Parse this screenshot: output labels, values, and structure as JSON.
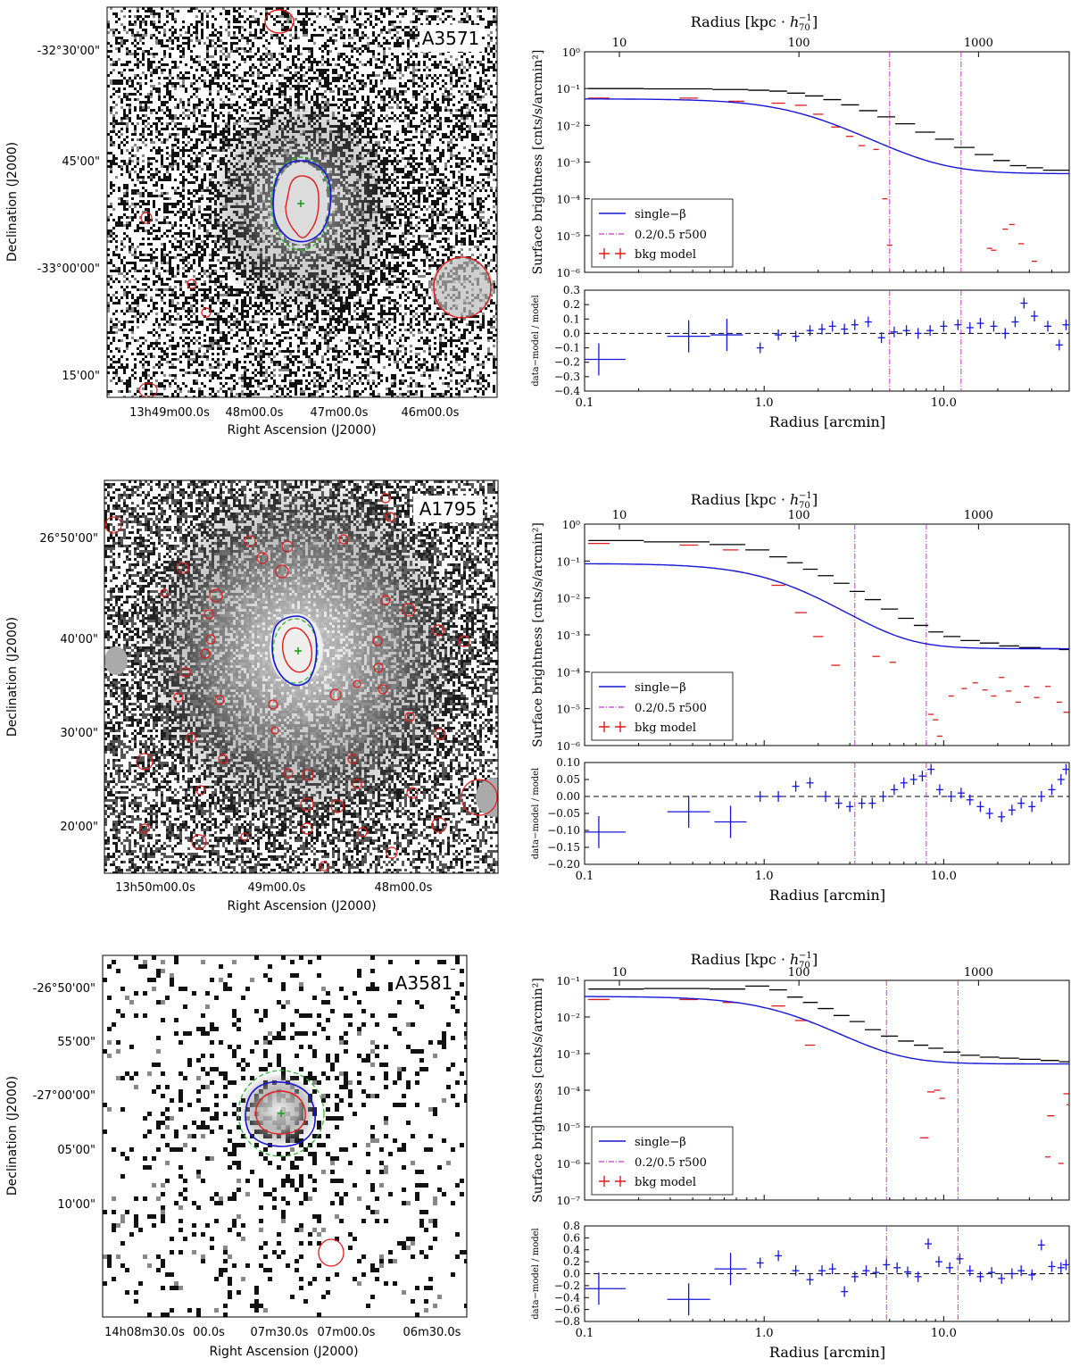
{
  "chart_data": [
    {
      "type": "image",
      "cluster_label": "A3571",
      "dec_label": "Declination (J2000)",
      "ra_label": "Right Ascension (J2000)",
      "dec_ticks": [
        "-32°30'00\"",
        "45'00\"",
        "-33°00'00\"",
        "15'00\""
      ],
      "ra_ticks": [
        "13h49m00.0s",
        "48m00.0s",
        "47m00.0s",
        "46m00.0s"
      ],
      "style": "sparse"
    },
    {
      "type": "line",
      "title": "Radius [kpc · h70^-1]",
      "ylabel": "Surface brightness [cnts/s/arcmin²]",
      "xlabel": "Radius [arcmin]",
      "resid_label": "data−model / model",
      "xlim": [
        0.1,
        50
      ],
      "ylim": [
        1e-06,
        1
      ],
      "top_ticks": [
        "10",
        "100",
        "1000"
      ],
      "x_ticks": [
        "0.1",
        "1.0",
        "10.0"
      ],
      "y_ticks": [
        "10⁻⁶",
        "10⁻⁵",
        "10⁻⁴",
        "10⁻³",
        "10⁻²",
        "10⁻¹",
        "10⁰"
      ],
      "vlines": [
        5.0,
        12.5
      ],
      "legend": [
        "single−β",
        "0.2/0.5 r500",
        "bkg model"
      ],
      "beta": {
        "s0": 0.052,
        "rc": 1.6,
        "beta": 0.62,
        "bg": 0.00048
      },
      "data_x": [
        0.12,
        0.38,
        0.7,
        0.95,
        1.2,
        1.5,
        1.9,
        2.4,
        3.0,
        3.8,
        4.8,
        6,
        8,
        10,
        13,
        17,
        21,
        26,
        32,
        40,
        48
      ],
      "data_y": [
        0.1,
        0.098,
        0.094,
        0.09,
        0.085,
        0.075,
        0.063,
        0.05,
        0.036,
        0.025,
        0.017,
        0.011,
        0.0065,
        0.0042,
        0.0025,
        0.0016,
        0.0011,
        0.0008,
        0.0007,
        0.0006,
        0.0006
      ],
      "bkg_x": [
        0.12,
        0.38,
        0.7,
        1.2,
        1.6,
        2.0,
        2.5,
        3.0,
        3.5,
        4.2,
        4.7,
        5.0,
        18,
        19,
        22,
        24,
        27,
        32
      ],
      "bkg_y": [
        0.055,
        0.055,
        0.045,
        0.04,
        0.035,
        0.02,
        0.009,
        0.005,
        0.0028,
        0.0022,
        0.0001,
        5.5e-06,
        4.5e-06,
        4e-06,
        1.5e-05,
        2e-05,
        6e-06,
        2e-06
      ],
      "resid_ylim": [
        -0.4,
        0.3
      ],
      "resid_ticks": [
        "0.3",
        "0.2",
        "0.1",
        "0.0",
        "−0.1",
        "−0.2",
        "−0.3",
        "−0.4"
      ],
      "resid_tick_values": [
        0.3,
        0.2,
        0.1,
        0.0,
        -0.1,
        -0.2,
        -0.3,
        -0.4
      ],
      "resid_x": [
        0.12,
        0.38,
        0.62,
        0.95,
        1.2,
        1.5,
        1.8,
        2.1,
        2.4,
        2.8,
        3.2,
        3.8,
        4.5,
        5.3,
        6.2,
        7.2,
        8.4,
        10,
        12,
        14,
        16,
        19,
        22,
        25,
        28,
        32,
        38,
        44,
        48
      ],
      "resid_y": [
        -0.18,
        -0.02,
        -0.01,
        -0.1,
        -0.01,
        -0.02,
        0.02,
        0.03,
        0.05,
        0.03,
        0.06,
        0.08,
        -0.03,
        0.01,
        0.02,
        0.0,
        0.02,
        0.05,
        0.06,
        0.04,
        0.07,
        0.05,
        0.0,
        0.08,
        0.21,
        0.12,
        0.05,
        -0.08,
        0.06
      ]
    },
    {
      "type": "image",
      "cluster_label": "A1795",
      "dec_label": "Declination (J2000)",
      "ra_label": "Right Ascension (J2000)",
      "dec_ticks": [
        "26°50'00\"",
        "40'00\"",
        "30'00\"",
        "20'00\""
      ],
      "ra_ticks": [
        "13h50m00.0s",
        "49m00.0s",
        "48m00.0s"
      ],
      "style": "dense"
    },
    {
      "type": "line",
      "title": "Radius [kpc · h70^-1]",
      "ylabel": "Surface brightness [cnts/s/arcmin²]",
      "xlabel": "Radius [arcmin]",
      "resid_label": "data−model / model",
      "xlim": [
        0.1,
        50
      ],
      "ylim": [
        1e-06,
        1
      ],
      "top_ticks": [
        "10",
        "100",
        "1000"
      ],
      "x_ticks": [
        "0.1",
        "1.0",
        "10.0"
      ],
      "y_ticks": [
        "10⁻⁶",
        "10⁻⁵",
        "10⁻⁴",
        "10⁻³",
        "10⁻²",
        "10⁻¹",
        "10⁰"
      ],
      "vlines": [
        3.2,
        8.0
      ],
      "legend": [
        "single−β",
        "0.2/0.5 r500",
        "bkg model"
      ],
      "beta": {
        "s0": 0.085,
        "rc": 1.2,
        "beta": 0.72,
        "bg": 0.00042
      },
      "data_x": [
        0.12,
        0.38,
        0.65,
        0.95,
        1.2,
        1.5,
        1.8,
        2.2,
        2.7,
        3.3,
        4.0,
        5.0,
        6.2,
        7.5,
        9,
        11,
        14,
        18,
        23,
        30,
        40,
        48
      ],
      "data_y": [
        0.36,
        0.33,
        0.28,
        0.2,
        0.13,
        0.09,
        0.06,
        0.04,
        0.025,
        0.015,
        0.009,
        0.005,
        0.0028,
        0.0018,
        0.0012,
        0.0009,
        0.0007,
        0.0006,
        0.0005,
        0.00045,
        0.00042,
        0.0004
      ],
      "bkg_x": [
        0.12,
        0.38,
        0.65,
        1.2,
        1.6,
        2.0,
        2.5,
        4.2,
        5.2,
        8.5,
        9,
        9.5,
        11,
        13,
        15,
        17,
        19,
        21,
        23,
        26,
        29,
        33,
        38,
        44,
        48
      ],
      "bkg_y": [
        0.3,
        0.27,
        0.2,
        0.022,
        0.004,
        0.0009,
        0.00015,
        0.00026,
        0.00018,
        7e-06,
        5e-06,
        1.8e-06,
        2.2e-05,
        3.5e-05,
        5e-05,
        3.2e-05,
        2.2e-05,
        7e-05,
        3e-05,
        1.5e-05,
        4e-05,
        2e-05,
        4e-05,
        1.5e-05,
        8e-06
      ],
      "resid_ylim": [
        -0.2,
        0.1
      ],
      "resid_ticks": [
        "0.10",
        "0.05",
        "0.00",
        "−0.05",
        "−0.10",
        "−0.15",
        "−0.20"
      ],
      "resid_tick_values": [
        0.1,
        0.05,
        0.0,
        -0.05,
        -0.1,
        -0.15,
        -0.2
      ],
      "resid_x": [
        0.12,
        0.38,
        0.65,
        0.95,
        1.2,
        1.5,
        1.8,
        2.2,
        2.6,
        3.0,
        3.5,
        4.0,
        4.6,
        5.3,
        6.0,
        6.8,
        7.6,
        8.5,
        9.5,
        11,
        12.5,
        14,
        16,
        18,
        21,
        24,
        27,
        31,
        35,
        40,
        45,
        48
      ],
      "resid_y": [
        -0.105,
        -0.045,
        -0.075,
        0.0,
        0.0,
        0.03,
        0.04,
        0.0,
        -0.02,
        -0.03,
        -0.02,
        -0.02,
        0.0,
        0.02,
        0.04,
        0.05,
        0.06,
        0.08,
        0.02,
        0.0,
        0.01,
        -0.01,
        -0.03,
        -0.05,
        -0.06,
        -0.04,
        -0.02,
        -0.03,
        0.0,
        0.02,
        0.05,
        0.08
      ]
    },
    {
      "type": "image",
      "cluster_label": "A3581",
      "dec_label": "Declination (J2000)",
      "ra_label": "Right Ascension (J2000)",
      "dec_ticks": [
        "-26°50'00\"",
        "55'00\"",
        "-27°00'00\"",
        "05'00\"",
        "10'00\""
      ],
      "ra_ticks": [
        "14h08m30.0s",
        "00.0s",
        "07m30.0s",
        "07m00.0s",
        "06m30.0s"
      ],
      "style": "very-sparse"
    },
    {
      "type": "line",
      "title": "Radius [kpc · h70^-1]",
      "ylabel": "Surface brightness [cnts/s/arcmin²]",
      "xlabel": "Radius [arcmin]",
      "resid_label": "data−model / model",
      "xlim": [
        0.1,
        50
      ],
      "ylim": [
        1e-07,
        0.1
      ],
      "top_ticks": [
        "10",
        "100",
        "1000"
      ],
      "x_ticks": [
        "0.1",
        "1.0",
        "10.0"
      ],
      "y_ticks": [
        "10⁻⁷",
        "10⁻⁶",
        "10⁻⁵",
        "10⁻⁴",
        "10⁻³",
        "10⁻²",
        "10⁻¹"
      ],
      "vlines": [
        4.8,
        12.0
      ],
      "legend": [
        "single−β",
        "0.2/0.5 r500",
        "bkg model"
      ],
      "beta": {
        "s0": 0.036,
        "rc": 1.3,
        "beta": 0.68,
        "bg": 0.00052
      },
      "data_x": [
        0.12,
        0.38,
        0.65,
        0.95,
        1.2,
        1.5,
        1.8,
        2.2,
        2.7,
        3.3,
        4.0,
        5.0,
        6.2,
        7.5,
        9,
        11,
        14,
        18,
        23,
        30,
        40,
        48
      ],
      "data_y": [
        0.058,
        0.06,
        0.058,
        0.07,
        0.055,
        0.035,
        0.025,
        0.017,
        0.011,
        0.0075,
        0.0045,
        0.003,
        0.0022,
        0.0017,
        0.0014,
        0.0011,
        0.0009,
        0.0008,
        0.00075,
        0.0007,
        0.00065,
        0.0006
      ],
      "bkg_x": [
        0.12,
        0.38,
        0.65,
        1.2,
        1.6,
        1.8,
        7.8,
        8.5,
        9.2,
        9.8,
        38,
        39,
        40,
        45,
        48,
        50
      ],
      "bkg_y": [
        0.03,
        0.03,
        0.025,
        0.02,
        0.008,
        0.0017,
        5e-06,
        9e-05,
        0.0001,
        6e-05,
        1.5e-06,
        2e-05,
        2e-05,
        1e-06,
        8e-05,
        4e-05
      ],
      "resid_ylim": [
        -0.8,
        0.8
      ],
      "resid_ticks": [
        "0.8",
        "0.6",
        "0.4",
        "0.2",
        "0.0",
        "−0.2",
        "−0.4",
        "−0.6",
        "−0.8"
      ],
      "resid_tick_values": [
        0.8,
        0.6,
        0.4,
        0.2,
        0.0,
        -0.2,
        -0.4,
        -0.6,
        -0.8
      ],
      "resid_x": [
        0.12,
        0.38,
        0.65,
        0.95,
        1.2,
        1.5,
        1.8,
        2.1,
        2.4,
        2.8,
        3.2,
        3.7,
        4.2,
        4.8,
        5.5,
        6.3,
        7.2,
        8.2,
        9.4,
        10.8,
        12.3,
        14,
        16,
        18.5,
        21,
        24,
        27,
        31,
        35,
        40,
        45,
        48
      ],
      "resid_y": [
        -0.25,
        -0.43,
        0.08,
        0.18,
        0.3,
        0.05,
        -0.1,
        0.05,
        0.08,
        -0.3,
        -0.05,
        0.05,
        0.02,
        0.15,
        0.1,
        0.03,
        -0.05,
        0.5,
        0.2,
        0.1,
        0.25,
        0.05,
        -0.05,
        0.02,
        -0.08,
        0.0,
        0.05,
        -0.02,
        0.48,
        0.12,
        0.1,
        0.15
      ]
    }
  ]
}
